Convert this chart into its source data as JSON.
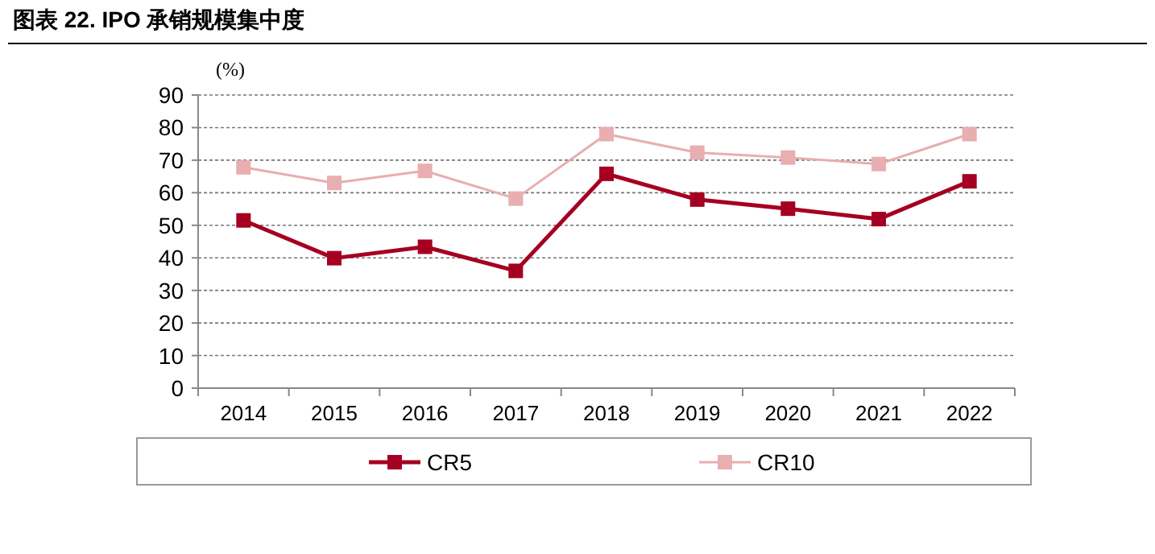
{
  "chart_data": {
    "type": "line",
    "title": "图表 22. IPO 承销规模集中度",
    "ylabel": "(%)",
    "categories": [
      "2014",
      "2015",
      "2016",
      "2017",
      "2018",
      "2019",
      "2020",
      "2021",
      "2022"
    ],
    "series": [
      {
        "name": "CR5",
        "color": "#a50021",
        "values": [
          51.5,
          39.9,
          43.4,
          36.0,
          65.8,
          57.9,
          55.1,
          51.9,
          63.5
        ]
      },
      {
        "name": "CR10",
        "color": "#e8aeb0",
        "values": [
          67.8,
          63.0,
          66.7,
          58.2,
          78.0,
          72.3,
          70.8,
          68.8,
          78.0
        ]
      }
    ],
    "ylim": [
      0,
      90
    ],
    "yticks": [
      0,
      10,
      20,
      30,
      40,
      50,
      60,
      70,
      80,
      90
    ],
    "grid": "y",
    "legend": "bottom",
    "marker": "square"
  }
}
